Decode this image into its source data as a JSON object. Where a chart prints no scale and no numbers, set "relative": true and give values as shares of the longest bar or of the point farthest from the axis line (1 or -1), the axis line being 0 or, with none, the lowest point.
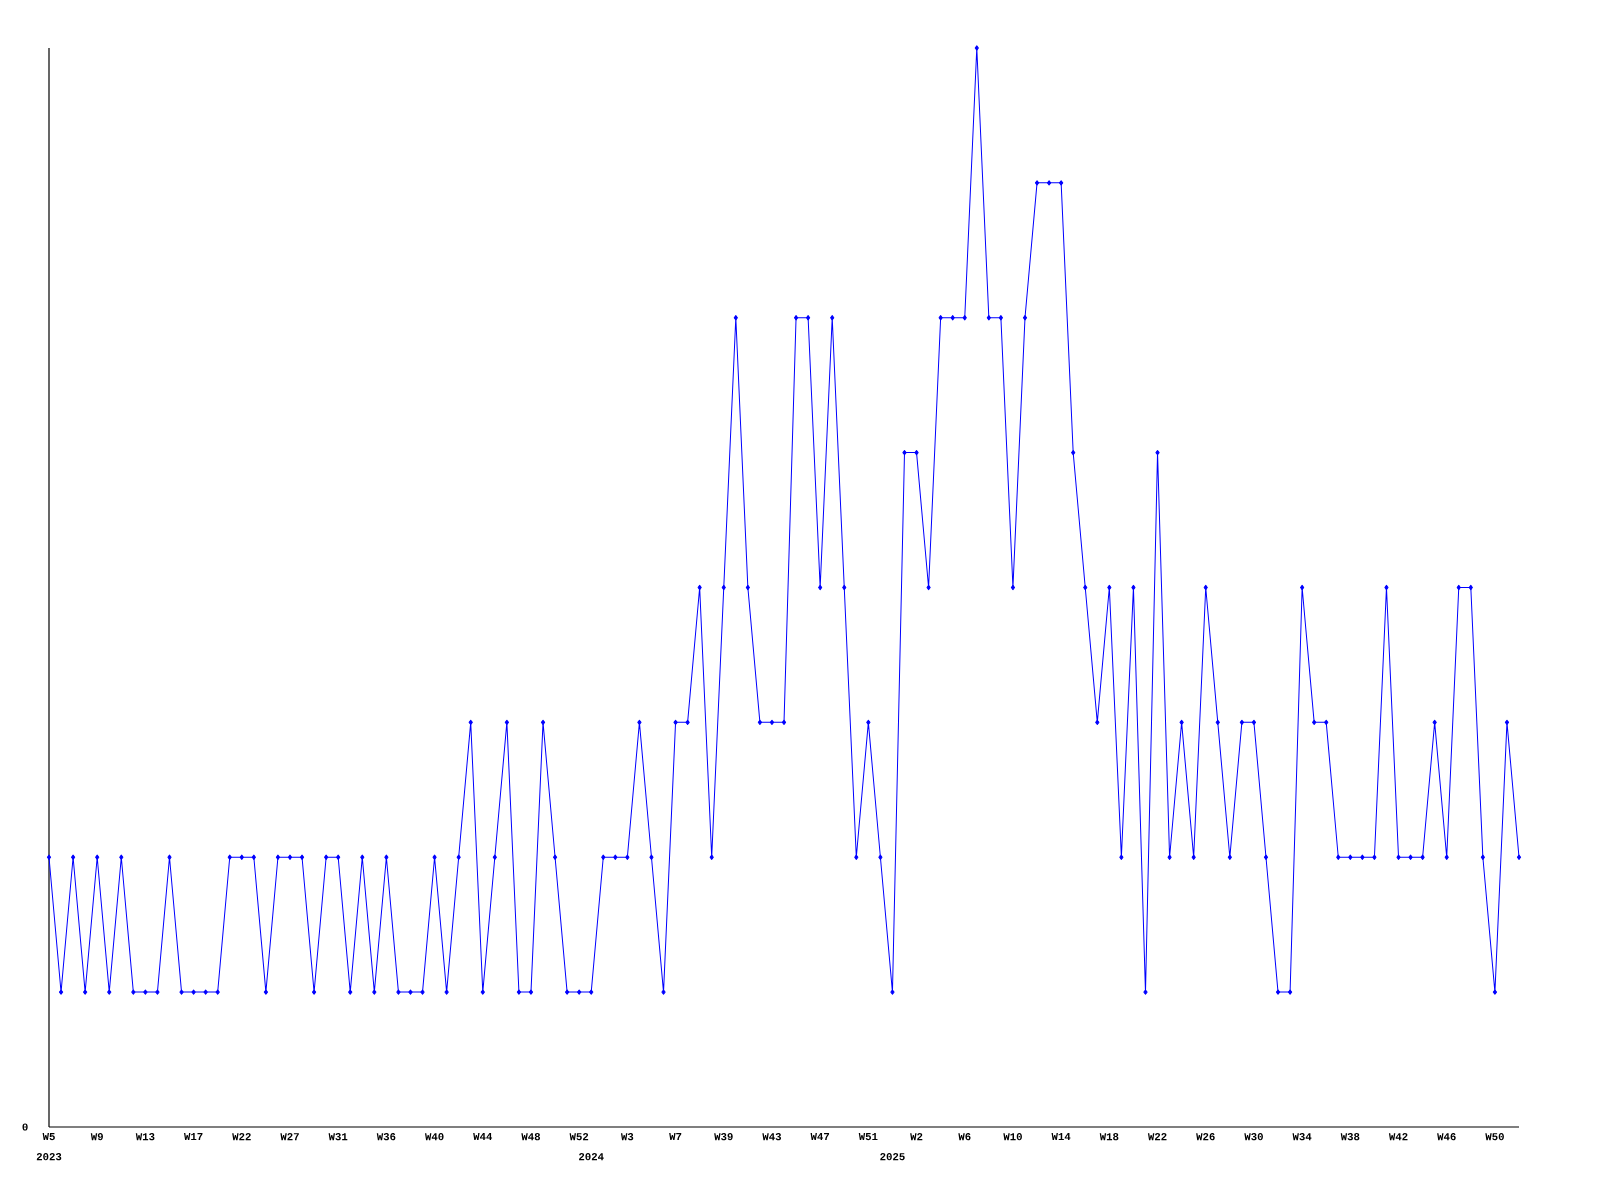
{
  "chart_data": {
    "type": "line",
    "relative": true,
    "color": "#0000ff",
    "marker": "diamond",
    "categories": [
      "W5",
      null,
      null,
      null,
      "W9",
      null,
      null,
      null,
      "W13",
      null,
      null,
      null,
      "W17",
      null,
      null,
      null,
      "W22",
      null,
      null,
      null,
      "W27",
      null,
      null,
      null,
      "W31",
      null,
      null,
      null,
      "W36",
      null,
      null,
      null,
      "W40",
      null,
      null,
      null,
      "W44",
      null,
      null,
      null,
      "W48",
      null,
      null,
      null,
      "W52",
      null,
      null,
      null,
      "W3",
      null,
      null,
      null,
      "W7",
      null,
      null,
      null,
      "W39",
      null,
      null,
      null,
      "W43",
      null,
      null,
      null,
      "W47",
      null,
      null,
      null,
      "W51",
      null,
      null,
      null,
      "W2",
      null,
      null,
      null,
      "W6",
      null,
      null,
      null,
      "W10",
      null,
      null,
      null,
      "W14",
      null,
      null,
      null,
      "W18",
      null,
      null,
      null,
      "W22",
      null,
      null,
      null,
      "W26",
      null,
      null,
      null,
      "W30",
      null,
      null,
      null,
      "W34",
      null,
      null,
      null,
      "W38",
      null,
      null,
      null,
      "W42",
      null,
      null,
      null,
      "W46",
      null,
      null,
      null,
      "W50",
      null,
      null
    ],
    "values": [
      0.25,
      0.125,
      0.25,
      0.125,
      0.25,
      0.125,
      0.25,
      0.125,
      0.125,
      0.125,
      0.25,
      0.125,
      0.125,
      0.125,
      0.125,
      0.25,
      0.25,
      0.25,
      0.125,
      0.25,
      0.25,
      0.25,
      0.125,
      0.25,
      0.25,
      0.125,
      0.25,
      0.125,
      0.25,
      0.125,
      0.125,
      0.125,
      0.25,
      0.125,
      0.25,
      0.375,
      0.125,
      0.25,
      0.375,
      0.125,
      0.125,
      0.375,
      0.25,
      0.125,
      0.125,
      0.125,
      0.25,
      0.25,
      0.25,
      0.375,
      0.25,
      0.125,
      0.375,
      0.375,
      0.5,
      0.25,
      0.5,
      0.75,
      0.5,
      0.375,
      0.375,
      0.375,
      0.75,
      0.75,
      0.5,
      0.75,
      0.5,
      0.25,
      0.375,
      0.25,
      0.125,
      0.625,
      0.625,
      0.5,
      0.75,
      0.75,
      0.75,
      1,
      0.75,
      0.75,
      0.5,
      0.75,
      0.875,
      0.875,
      0.875,
      0.625,
      0.5,
      0.375,
      0.5,
      0.25,
      0.5,
      0.125,
      0.625,
      0.25,
      0.375,
      0.25,
      0.5,
      0.375,
      0.25,
      0.375,
      0.375,
      0.25,
      0.125,
      0.125,
      0.5,
      0.375,
      0.375,
      0.25,
      0.25,
      0.25,
      0.25,
      0.5,
      0.25,
      0.25,
      0.25,
      0.375,
      0.25,
      0.5,
      0.5,
      0.25,
      0.125,
      0.375,
      0.25
    ],
    "annotations": [
      "0",
      "2023",
      "2024",
      "2025"
    ]
  }
}
